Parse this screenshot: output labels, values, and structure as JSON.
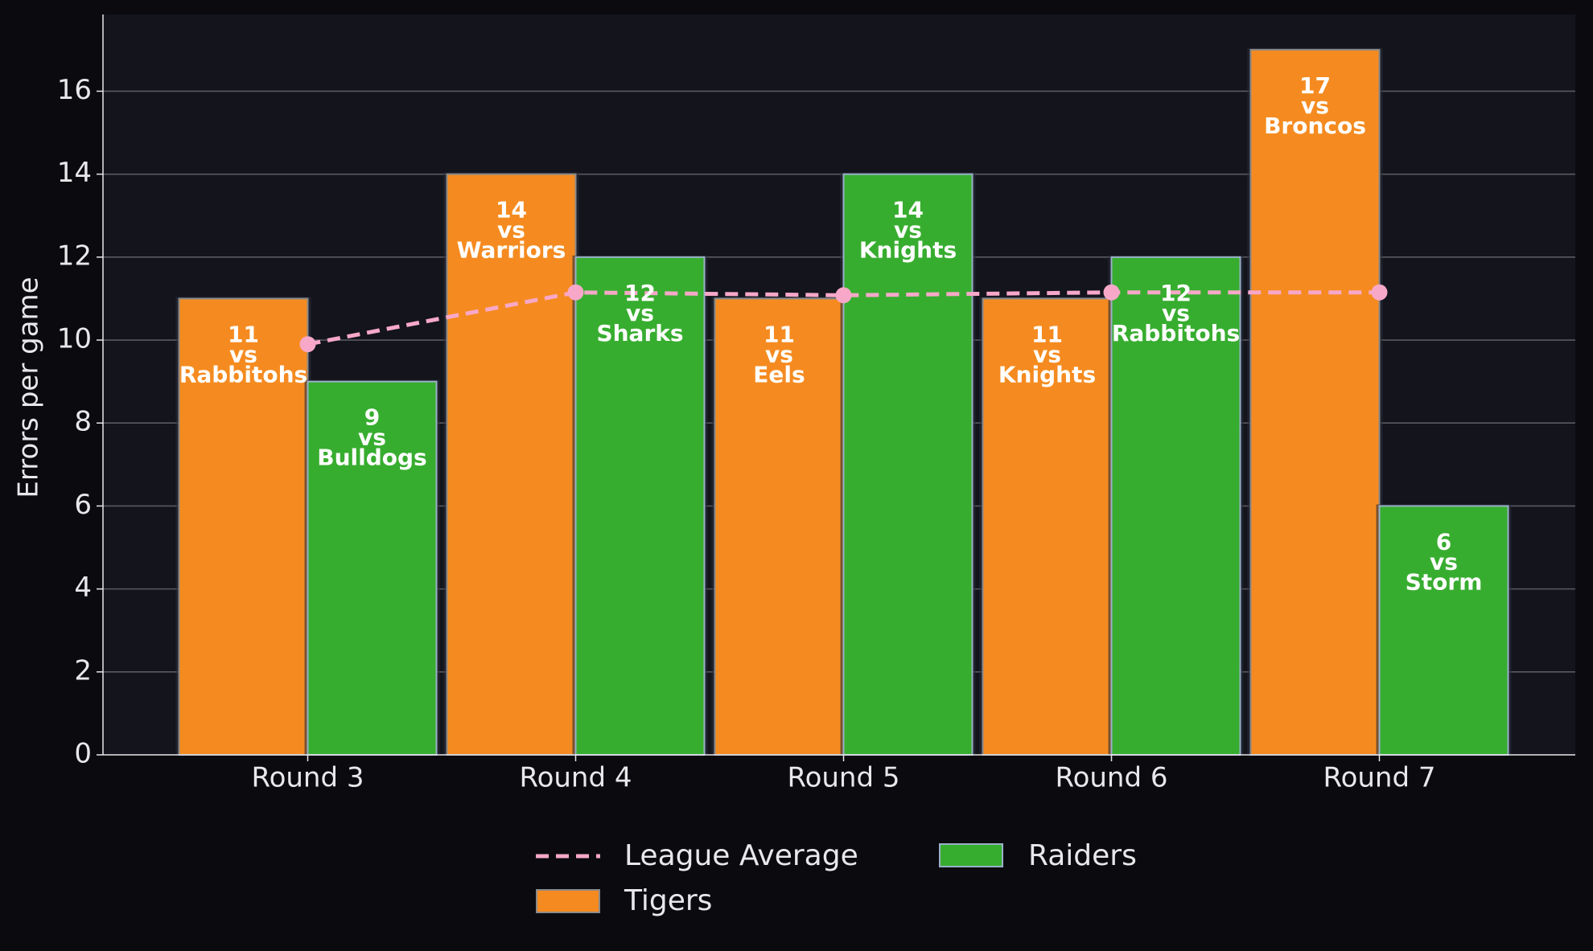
{
  "chart_data": {
    "type": "bar",
    "title": "",
    "xlabel": "",
    "ylabel": "Errors per game",
    "ylim": [
      0,
      17.85
    ],
    "yticks": [
      0,
      2,
      4,
      6,
      8,
      10,
      12,
      14,
      16
    ],
    "grid": true,
    "categories": [
      "Round 3",
      "Round 4",
      "Round 5",
      "Round 6",
      "Round 7"
    ],
    "series": [
      {
        "name": "Tigers",
        "type": "bar",
        "color": "#f58b20",
        "values": [
          11,
          14,
          11,
          11,
          17
        ],
        "labels": [
          "11\nvs\nRabbitohs",
          "14\nvs\nWarriors",
          "11\nvs\nEels",
          "11\nvs\nKnights",
          "17\nvs\nBroncos"
        ]
      },
      {
        "name": "Raiders",
        "type": "bar",
        "color": "#37ad2f",
        "values": [
          9,
          12,
          14,
          12,
          6
        ],
        "labels": [
          "9\nvs\nBulldogs",
          "12\nvs\nSharks",
          "14\nvs\nKnights",
          "12\nvs\nRabbitohs",
          "6\nvs\nStorm"
        ]
      },
      {
        "name": "League Average",
        "type": "line",
        "style": "dashed",
        "color": "#f7a8c8",
        "values": [
          9.9,
          11.15,
          11.08,
          11.15,
          11.15
        ]
      }
    ],
    "legend": {
      "position": "bottom-center",
      "entries": [
        "League Average",
        "Tigers",
        "Raiders"
      ]
    }
  },
  "colors": {
    "background": "#0b0b0f",
    "plot_background": "#13141c",
    "grid": "#5a5a60",
    "text": "#e8e8ea",
    "bar_edge": "#9ab0c8"
  }
}
